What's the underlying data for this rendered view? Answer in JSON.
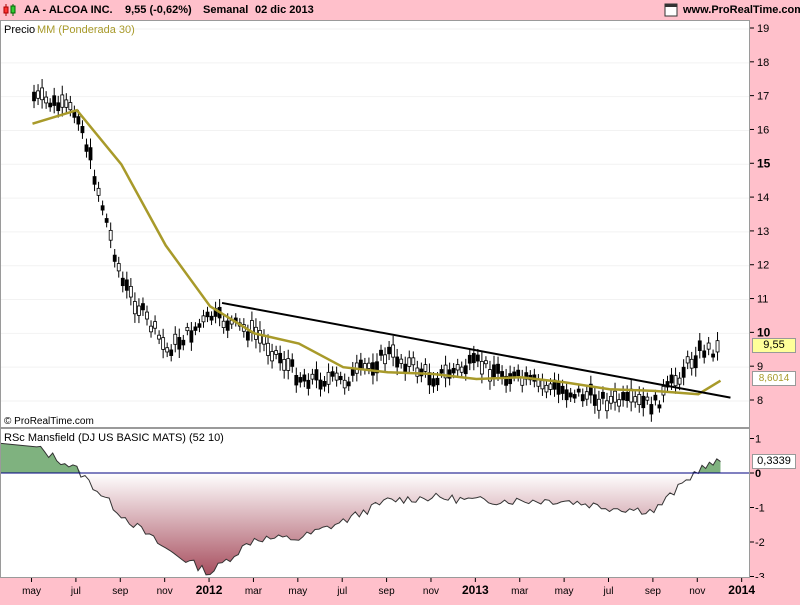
{
  "header": {
    "title": "AA - ALCOA INC.",
    "price_change": "9,55 (-0,62%)",
    "period": "Semanal",
    "date": "02 dic 2013",
    "site": "www.ProRealTime.com"
  },
  "price_panel": {
    "label_precio": "Precio",
    "label_ma": "MM (Ponderada 30)",
    "watermark": "© ProRealTime.com",
    "last_price_label": "9,55",
    "ma_value_label": "8,6014",
    "colors": {
      "ma": "#a89a2a",
      "last_price_bg": "#ffff99",
      "ma_label_bg": "#ffffff",
      "trendline": "#000000"
    }
  },
  "indicator_panel": {
    "label": "RSc Mansfield (DJ US BASIC MATS) (52 10)",
    "last_value_label": "0,3339",
    "colors": {
      "positive_fill": "#7fb27f",
      "negative_fill": "#a85060",
      "zero_line": "#000080"
    }
  },
  "x_axis": {
    "labels": [
      "may",
      "jul",
      "sep",
      "nov",
      "2012",
      "mar",
      "may",
      "jul",
      "sep",
      "nov",
      "2013",
      "mar",
      "may",
      "jul",
      "sep",
      "nov",
      "2014"
    ],
    "bold": [
      "2012",
      "2013",
      "2014"
    ]
  },
  "chart_data": [
    {
      "type": "candlestick",
      "title": "AA - ALCOA INC.",
      "y_axis_ticks": [
        "8",
        "9",
        "10",
        "11",
        "12",
        "13",
        "14",
        "15",
        "16",
        "17",
        "18",
        "19"
      ],
      "ylim": [
        7.5,
        19.2
      ],
      "x": [
        "2011-05",
        "2011-07",
        "2011-09",
        "2011-11",
        "2012-01",
        "2012-03",
        "2012-05",
        "2012-07",
        "2012-09",
        "2012-11",
        "2013-01",
        "2013-03",
        "2013-05",
        "2013-07",
        "2013-09",
        "2013-11",
        "2013-12"
      ],
      "series": [
        {
          "name": "Precio",
          "close": [
            17.0,
            16.5,
            11.5,
            9.5,
            10.5,
            10.0,
            8.7,
            8.6,
            9.4,
            8.7,
            9.1,
            8.6,
            8.3,
            8.0,
            7.9,
            9.5,
            9.55
          ]
        },
        {
          "name": "MM (Ponderada 30)",
          "values": [
            16.2,
            16.6,
            15.0,
            12.6,
            10.8,
            10.0,
            9.7,
            9.0,
            8.85,
            8.8,
            8.65,
            8.7,
            8.55,
            8.35,
            8.3,
            8.2,
            8.6014
          ]
        }
      ],
      "trendline": {
        "from": [
          "2012-01",
          10.9
        ],
        "to": [
          "2013-12",
          8.1
        ]
      }
    },
    {
      "type": "area",
      "title": "RSc Mansfield (DJ US BASIC MATS) (52 10)",
      "y_axis_ticks": [
        "1",
        "0",
        "-1",
        "-2",
        "-3"
      ],
      "ylim": [
        -3.0,
        1.0
      ],
      "x": [
        "2011-05",
        "2011-07",
        "2011-09",
        "2011-11",
        "2012-01",
        "2012-03",
        "2012-05",
        "2012-07",
        "2012-09",
        "2012-11",
        "2013-01",
        "2013-03",
        "2013-05",
        "2013-07",
        "2013-09",
        "2013-11",
        "2013-12"
      ],
      "values": [
        0.8,
        0.1,
        -1.2,
        -2.2,
        -2.9,
        -1.9,
        -1.9,
        -1.4,
        -0.8,
        -0.7,
        -0.8,
        -0.8,
        -0.8,
        -1.0,
        -1.1,
        0.1,
        0.3339
      ]
    }
  ]
}
